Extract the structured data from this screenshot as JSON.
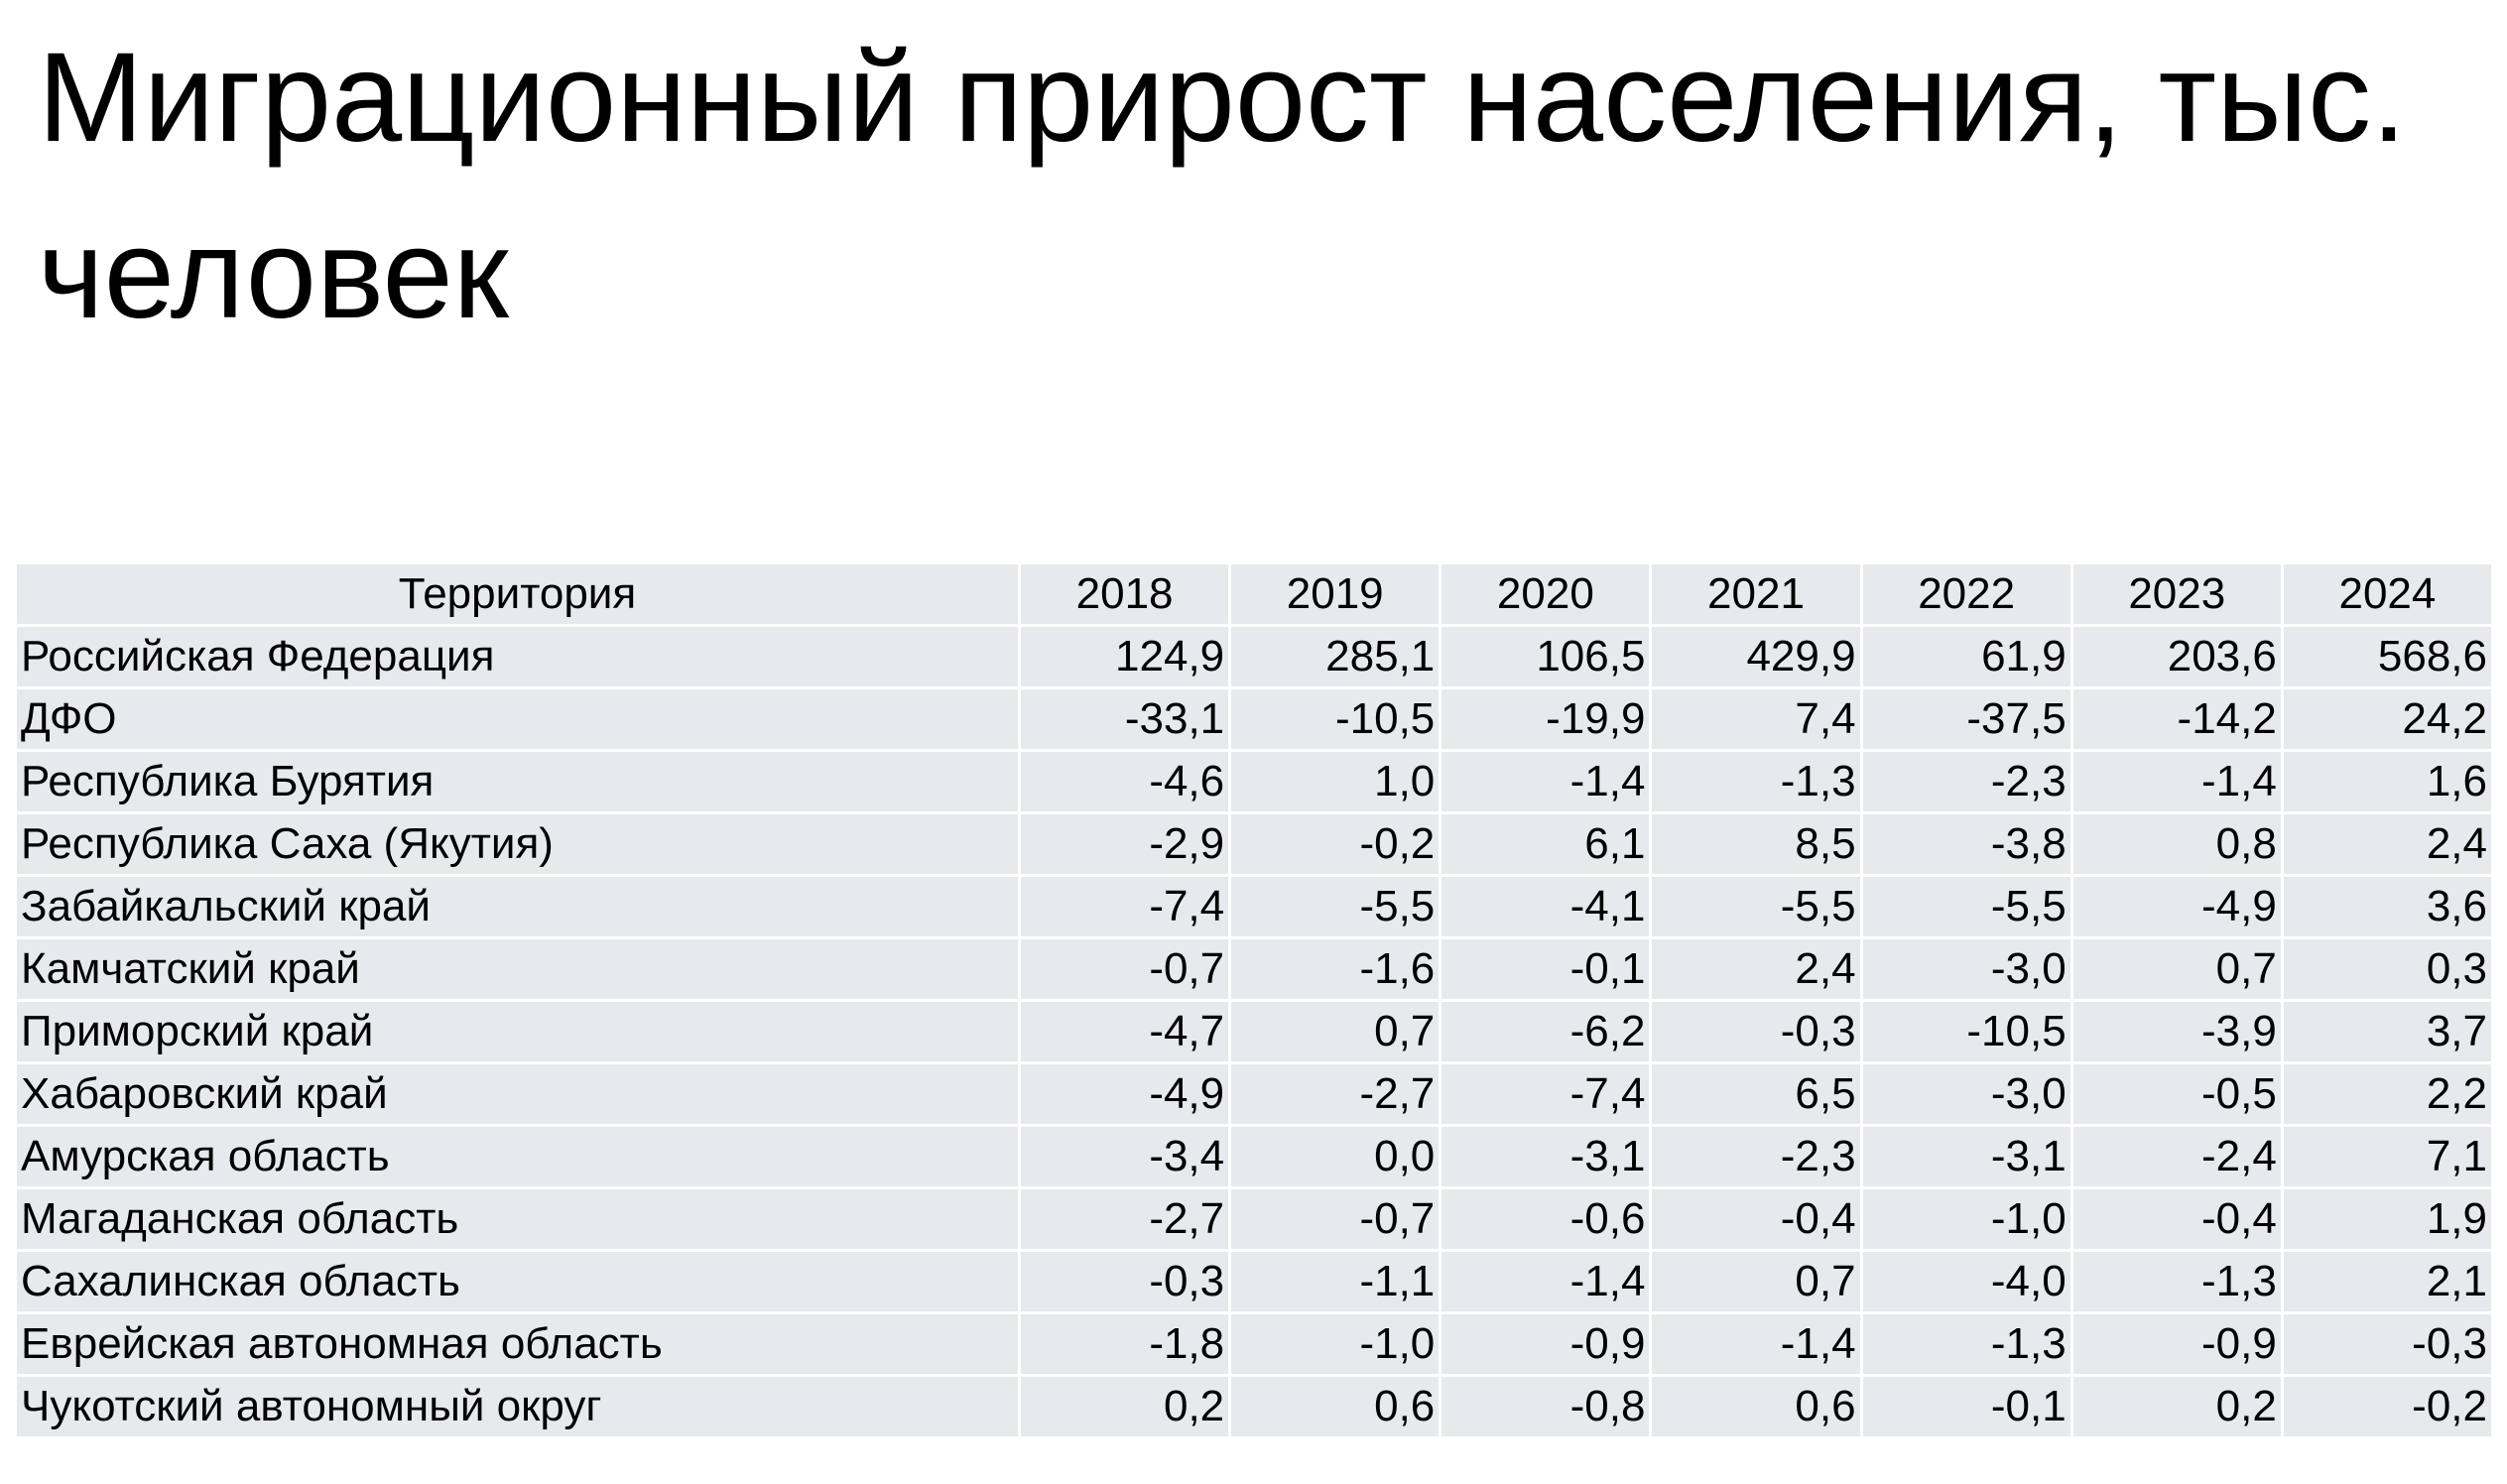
{
  "title": "Миграционный прирост населения, тыс. человек",
  "table": {
    "header": [
      "Территория",
      "2018",
      "2019",
      "2020",
      "2021",
      "2022",
      "2023",
      "2024"
    ],
    "rows": [
      [
        "Российская Федерация",
        "124,9",
        "285,1",
        "106,5",
        "429,9",
        "61,9",
        "203,6",
        "568,6"
      ],
      [
        "ДФО",
        "-33,1",
        "-10,5",
        "-19,9",
        "7,4",
        "-37,5",
        "-14,2",
        "24,2"
      ],
      [
        "Республика Бурятия",
        "-4,6",
        "1,0",
        "-1,4",
        "-1,3",
        "-2,3",
        "-1,4",
        "1,6"
      ],
      [
        "Республика Саха (Якутия)",
        "-2,9",
        "-0,2",
        "6,1",
        "8,5",
        "-3,8",
        "0,8",
        "2,4"
      ],
      [
        "Забайкальский край",
        "-7,4",
        "-5,5",
        "-4,1",
        "-5,5",
        "-5,5",
        "-4,9",
        "3,6"
      ],
      [
        "Камчатский край",
        "-0,7",
        "-1,6",
        "-0,1",
        "2,4",
        "-3,0",
        "0,7",
        "0,3"
      ],
      [
        "Приморский край",
        "-4,7",
        "0,7",
        "-6,2",
        "-0,3",
        "-10,5",
        "-3,9",
        "3,7"
      ],
      [
        "Хабаровский край",
        "-4,9",
        "-2,7",
        "-7,4",
        "6,5",
        "-3,0",
        "-0,5",
        "2,2"
      ],
      [
        "Амурская область",
        "-3,4",
        "0,0",
        "-3,1",
        "-2,3",
        "-3,1",
        "-2,4",
        "7,1"
      ],
      [
        "Магаданская область",
        "-2,7",
        "-0,7",
        "-0,6",
        "-0,4",
        "-1,0",
        "-0,4",
        "1,9"
      ],
      [
        "Сахалинская область",
        "-0,3",
        "-1,1",
        "-1,4",
        "0,7",
        "-4,0",
        "-1,3",
        "2,1"
      ],
      [
        "Еврейская автономная область",
        "-1,8",
        "-1,0",
        "-0,9",
        "-1,4",
        "-1,3",
        "-0,9",
        "-0,3"
      ],
      [
        "Чукотский автономный округ",
        "0,2",
        "0,6",
        "-0,8",
        "0,6",
        "-0,1",
        "0,2",
        "-0,2"
      ]
    ]
  }
}
